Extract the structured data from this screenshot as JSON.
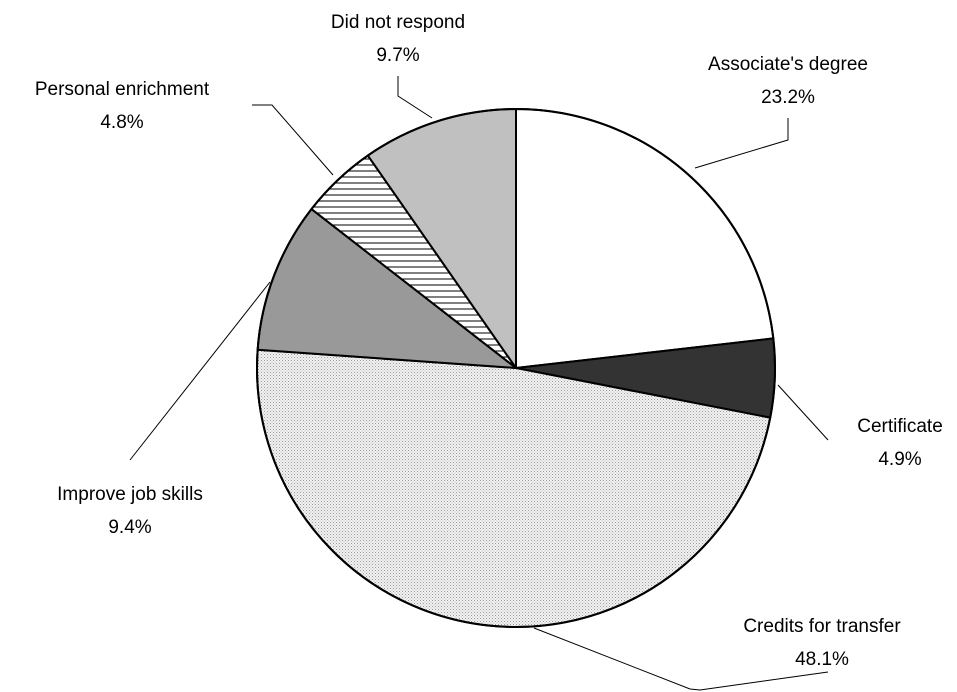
{
  "chart_data": {
    "type": "pie",
    "title": "",
    "slices": [
      {
        "label": "Associate's degree",
        "value": 23.2,
        "value_label": "23.2%",
        "color": "#ffffff",
        "pattern": "solid"
      },
      {
        "label": "Certificate",
        "value": 4.9,
        "value_label": "4.9%",
        "color": "#333333",
        "pattern": "solid"
      },
      {
        "label": "Credits for transfer",
        "value": 48.1,
        "value_label": "48.1%",
        "color": "#e4e4e4",
        "pattern": "dots"
      },
      {
        "label": "Improve job skills",
        "value": 9.4,
        "value_label": "9.4%",
        "color": "#999999",
        "pattern": "solid"
      },
      {
        "label": "Personal enrichment",
        "value": 4.8,
        "value_label": "4.8%",
        "color": "#ffffff",
        "pattern": "horizontal-lines"
      },
      {
        "label": "Did not respond",
        "value": 9.7,
        "value_label": "9.7%",
        "color": "#c0c0c0",
        "pattern": "solid"
      }
    ],
    "start": "12 o'clock",
    "direction": "clockwise",
    "legend": "none"
  }
}
